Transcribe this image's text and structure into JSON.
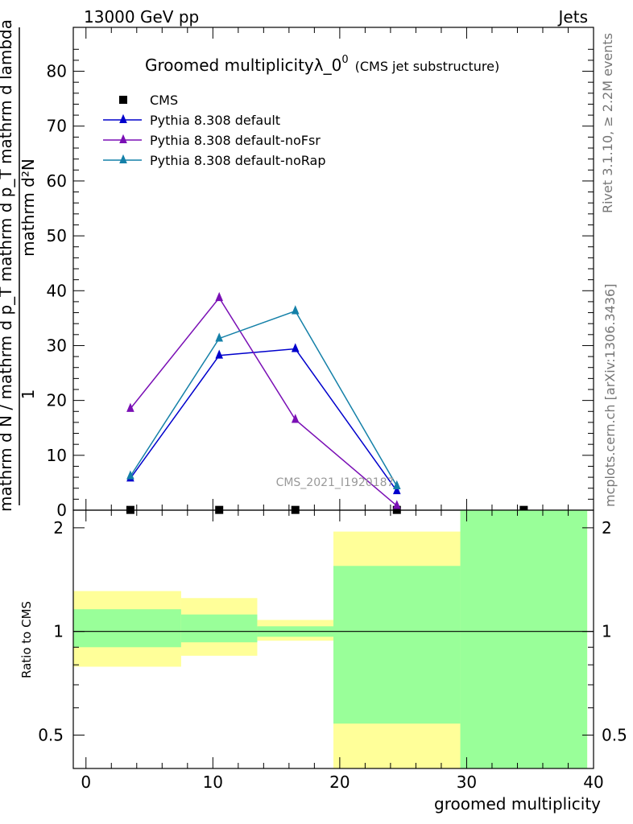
{
  "header": {
    "left": "13000 GeV pp",
    "right": "Jets"
  },
  "side_labels": {
    "rivet": "Rivet 3.1.10, ≥ 2.2M events",
    "mcplots": "mcplots.cern.ch [arXiv:1306.3436]"
  },
  "chart_data": [
    {
      "type": "line",
      "title_main": "Groomed multiplicityλ_0",
      "title_superscript": "0",
      "title_sub": "(CMS jet substructure)",
      "watermark": "CMS_2021_I1920187",
      "ylabel_numerator": "mathrm d²N",
      "ylabel_numerator_prefix": "1",
      "ylabel_denominator": "mathrm d N / mathrm d p_T mathrm d p_T mathrm d lambda",
      "ylim": [
        0,
        88
      ],
      "yticks": [
        0,
        10,
        20,
        30,
        40,
        50,
        60,
        70,
        80
      ],
      "xlim": [
        -1,
        40
      ],
      "series": [
        {
          "name": "CMS",
          "color": "#000000",
          "marker": "square",
          "x": [
            3.5,
            10.5,
            16.5,
            24.5,
            34.5
          ],
          "y": [
            0.05,
            0.05,
            0.05,
            0.05,
            0.05
          ]
        },
        {
          "name": "Pythia 8.308 default",
          "color": "#0000cc",
          "marker": "triangle",
          "x": [
            3.5,
            10.5,
            16.5,
            24.5
          ],
          "y": [
            5.8,
            28.2,
            29.4,
            3.5
          ]
        },
        {
          "name": "Pythia 8.308 default-noFsr",
          "color": "#7a0fb5",
          "marker": "triangle",
          "x": [
            3.5,
            10.5,
            16.5,
            24.5
          ],
          "y": [
            18.5,
            38.7,
            16.5,
            0.8
          ]
        },
        {
          "name": "Pythia 8.308 default-noRap",
          "color": "#1480a8",
          "marker": "triangle",
          "x": [
            3.5,
            10.5,
            16.5,
            24.5
          ],
          "y": [
            6.2,
            31.3,
            36.3,
            4.4
          ]
        }
      ]
    },
    {
      "type": "area",
      "ylabel": "Ratio to CMS",
      "xlabel": "groomed multiplicity",
      "ylim": [
        0.4,
        2.25
      ],
      "log_scale_y": true,
      "yticks": [
        0.5,
        1,
        2
      ],
      "xticks": [
        0,
        10,
        20,
        30,
        40
      ],
      "reference_line": 1,
      "bands": [
        {
          "x0": -1,
          "x1": 7.5,
          "yellow": [
            0.79,
            1.31
          ],
          "green": [
            0.9,
            1.16
          ]
        },
        {
          "x0": 7.5,
          "x1": 13.5,
          "yellow": [
            0.85,
            1.25
          ],
          "green": [
            0.93,
            1.12
          ]
        },
        {
          "x0": 13.5,
          "x1": 19.5,
          "yellow": [
            0.94,
            1.08
          ],
          "green": [
            0.965,
            1.035
          ]
        },
        {
          "x0": 19.5,
          "x1": 29.5,
          "yellow": [
            0.4,
            1.95
          ],
          "green": [
            0.54,
            1.55
          ]
        },
        {
          "x0": 29.5,
          "x1": 39.5,
          "yellow": [
            0.4,
            2.25
          ],
          "green": [
            0.4,
            2.25
          ]
        }
      ],
      "colors": {
        "yellow": "#ffff99",
        "green": "#99ff99"
      }
    }
  ]
}
